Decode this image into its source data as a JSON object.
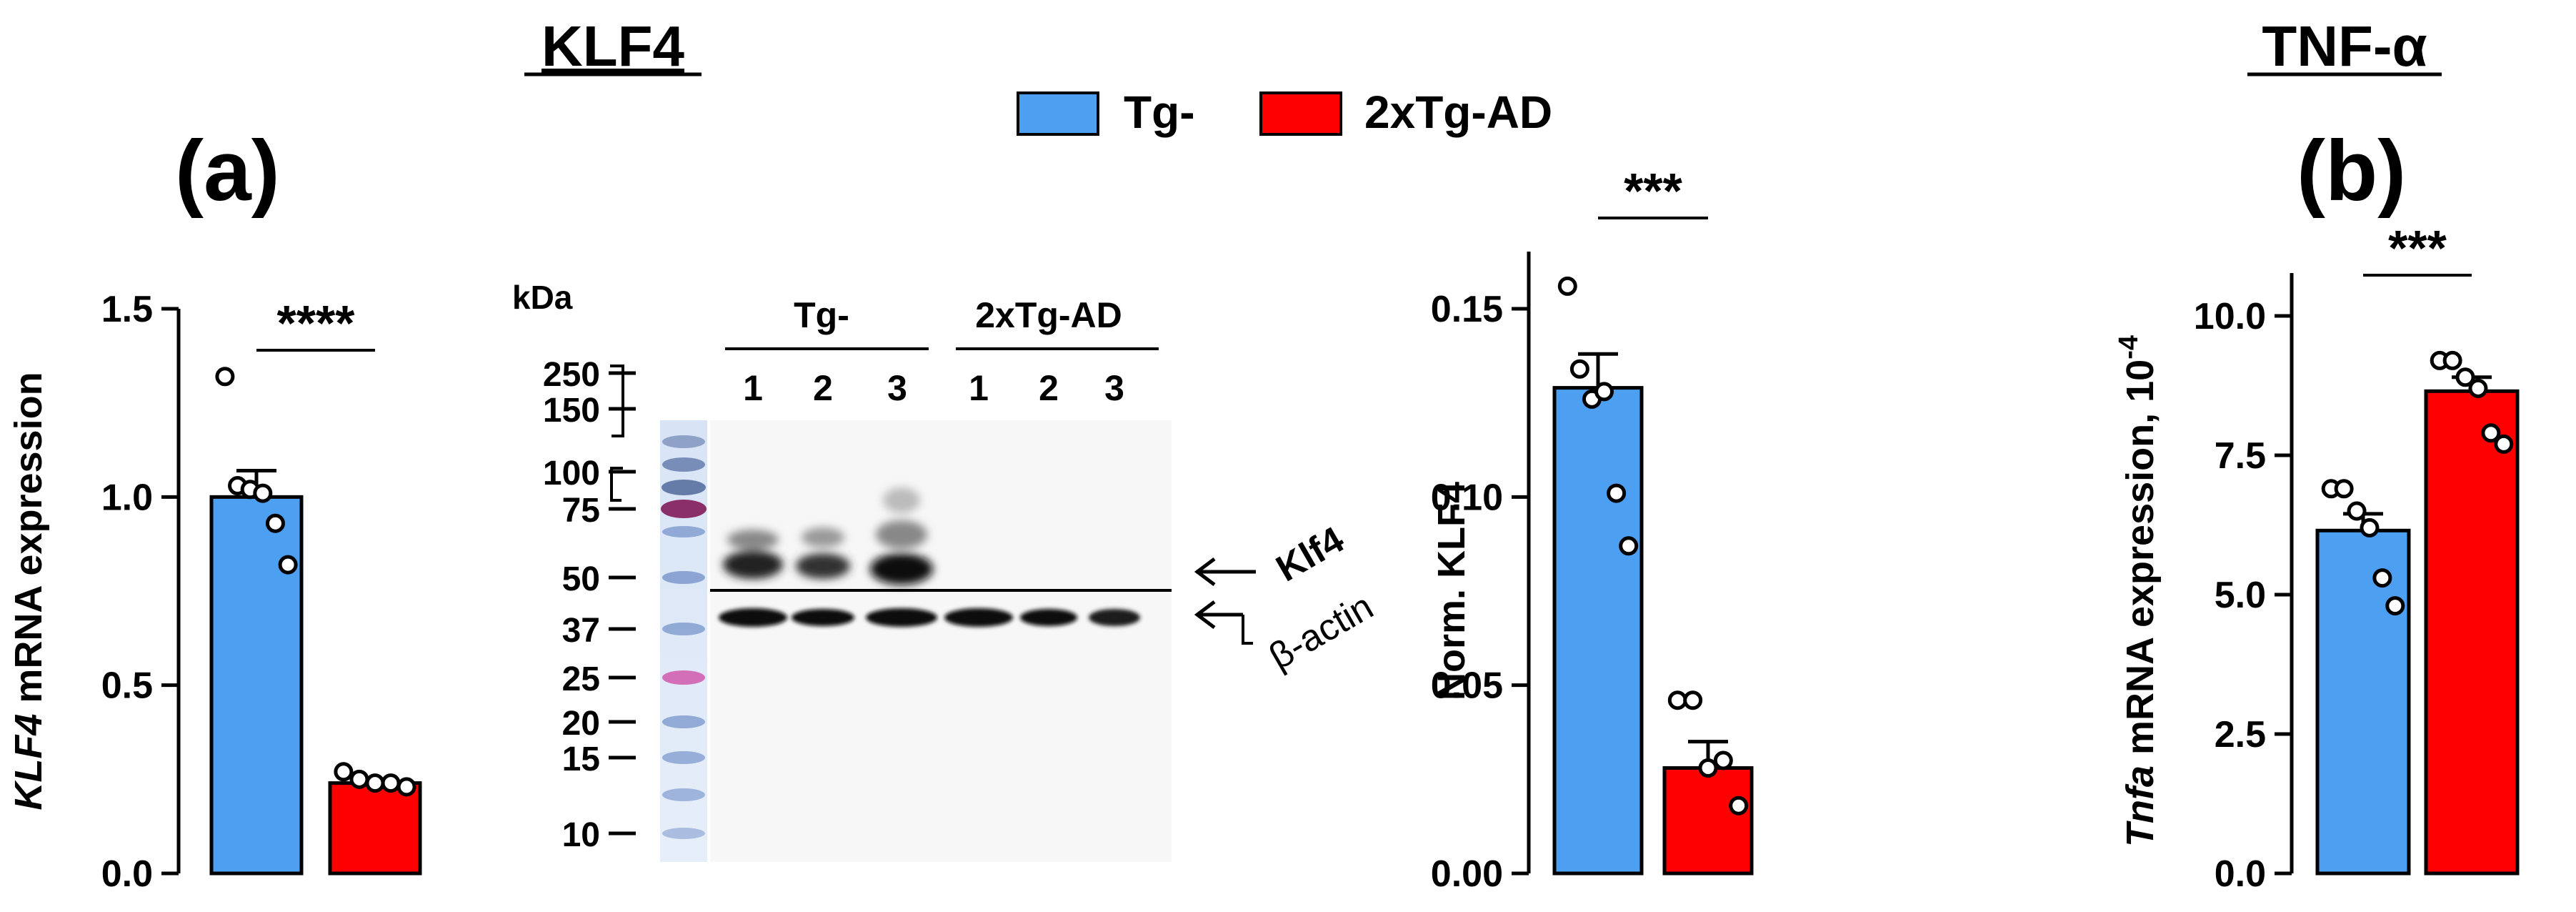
{
  "header": {
    "title_left": "KLF4",
    "title_right": "TNF-α",
    "panel_a": "(a)",
    "panel_b": "(b)"
  },
  "legend": [
    {
      "name": "Tg-",
      "color": "#4d9ff2"
    },
    {
      "name": "2xTg-AD",
      "color": "#ff0000"
    }
  ],
  "colors": {
    "tg": "#4d9ff2",
    "tgad": "#ff0000",
    "axis": "#000000"
  },
  "western_blot": {
    "kda_label": "kDa",
    "ladder": [
      "250",
      "150",
      "100",
      "75",
      "50",
      "37",
      "25",
      "20",
      "15",
      "10"
    ],
    "groups": [
      {
        "label": "Tg-",
        "lanes": [
          "1",
          "2",
          "3"
        ]
      },
      {
        "label": "2xTg-AD",
        "lanes": [
          "1",
          "2",
          "3"
        ]
      }
    ],
    "band_labels": {
      "klf4": "Klf4",
      "actin": "β-actin"
    }
  },
  "chart_data": [
    {
      "id": "klf4-mrna",
      "type": "bar",
      "categories": [
        "Tg-",
        "2xTg-AD"
      ],
      "ylabel_italic": "KLF4",
      "ylabel_rest": " mRNA expression",
      "ylim": [
        0,
        1.5
      ],
      "yticks": [
        "0.0",
        "0.5",
        "1.0",
        "1.5"
      ],
      "significance": "****",
      "series": [
        {
          "values": [
            1.0,
            0.24
          ],
          "sem": [
            0.07,
            0.01
          ]
        }
      ],
      "points": [
        [
          1.32,
          1.03,
          1.02,
          1.01,
          0.93,
          0.82
        ],
        [
          0.27,
          0.25,
          0.24,
          0.24,
          0.23
        ]
      ]
    },
    {
      "id": "norm-klf4",
      "type": "bar",
      "categories": [
        "Tg-",
        "2xTg-AD"
      ],
      "ylabel": "Norm. KLF4",
      "ylim": [
        0,
        0.15
      ],
      "yticks": [
        "0.00",
        "0.05",
        "0.10",
        "0.15"
      ],
      "significance": "***",
      "series": [
        {
          "values": [
            0.129,
            0.028
          ],
          "sem": [
            0.009,
            0.007
          ]
        }
      ],
      "points": [
        [
          0.156,
          0.134,
          0.126,
          0.128,
          0.101,
          0.087
        ],
        [
          0.046,
          0.046,
          0.028,
          0.03,
          0.018
        ]
      ]
    },
    {
      "id": "tnfa-mrna",
      "type": "bar",
      "categories": [
        "Tg-",
        "2xTg-AD"
      ],
      "ylabel_italic": "Tnfa",
      "ylabel_rest": " mRNA expression, 10",
      "ylabel_sup": "-4",
      "ylim": [
        0,
        10
      ],
      "yticks": [
        "0.0",
        "2.5",
        "5.0",
        "7.5",
        "10.0"
      ],
      "significance": "***",
      "series": [
        {
          "values": [
            6.15,
            8.65
          ],
          "sem": [
            0.3,
            0.25
          ]
        }
      ],
      "points": [
        [
          6.9,
          6.9,
          6.5,
          6.2,
          5.3,
          4.8
        ],
        [
          9.2,
          9.2,
          8.9,
          8.7,
          7.9,
          7.7
        ]
      ]
    }
  ]
}
